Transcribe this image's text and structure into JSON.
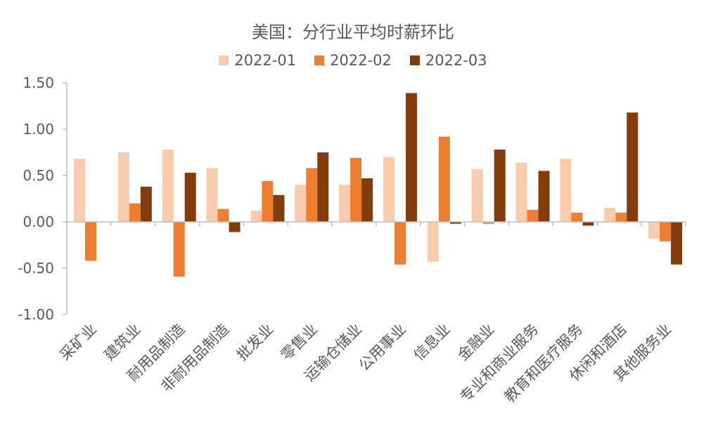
{
  "chart_data": {
    "type": "bar",
    "title": "美国：分行业平均时薪环比",
    "xlabel": "",
    "ylabel": "",
    "ylim": [
      -1.0,
      1.5
    ],
    "yticks": [
      "1.50",
      "1.00",
      "0.50",
      "0.00",
      "-0.50",
      "-1.00"
    ],
    "ytick_values": [
      1.5,
      1.0,
      0.5,
      0.0,
      -0.5,
      -1.0
    ],
    "legend_position": "top-center",
    "grid": false,
    "categories": [
      "采矿业",
      "建筑业",
      "耐用品制造",
      "非耐用品制造",
      "批发业",
      "零售业",
      "运输仓储业",
      "公用事业",
      "信息业",
      "金融业",
      "专业和商业服务",
      "教育和医疗服务",
      "休闲和酒店",
      "其他服务业"
    ],
    "series": [
      {
        "name": "2022-01",
        "color": "#F8CBAD",
        "values": [
          0.68,
          0.75,
          0.78,
          0.58,
          0.12,
          0.4,
          0.4,
          0.7,
          -0.43,
          0.57,
          0.64,
          0.68,
          0.15,
          -0.18
        ]
      },
      {
        "name": "2022-02",
        "color": "#ED7D31",
        "values": [
          -0.42,
          0.2,
          -0.59,
          0.14,
          0.44,
          0.58,
          0.69,
          -0.46,
          0.92,
          -0.02,
          0.13,
          0.1,
          0.1,
          -0.21
        ]
      },
      {
        "name": "2022-03",
        "color": "#843C0C",
        "values": [
          0.0,
          0.38,
          0.53,
          -0.11,
          0.29,
          0.75,
          0.47,
          1.39,
          -0.02,
          0.78,
          0.55,
          -0.04,
          1.18,
          -0.46
        ]
      }
    ]
  }
}
